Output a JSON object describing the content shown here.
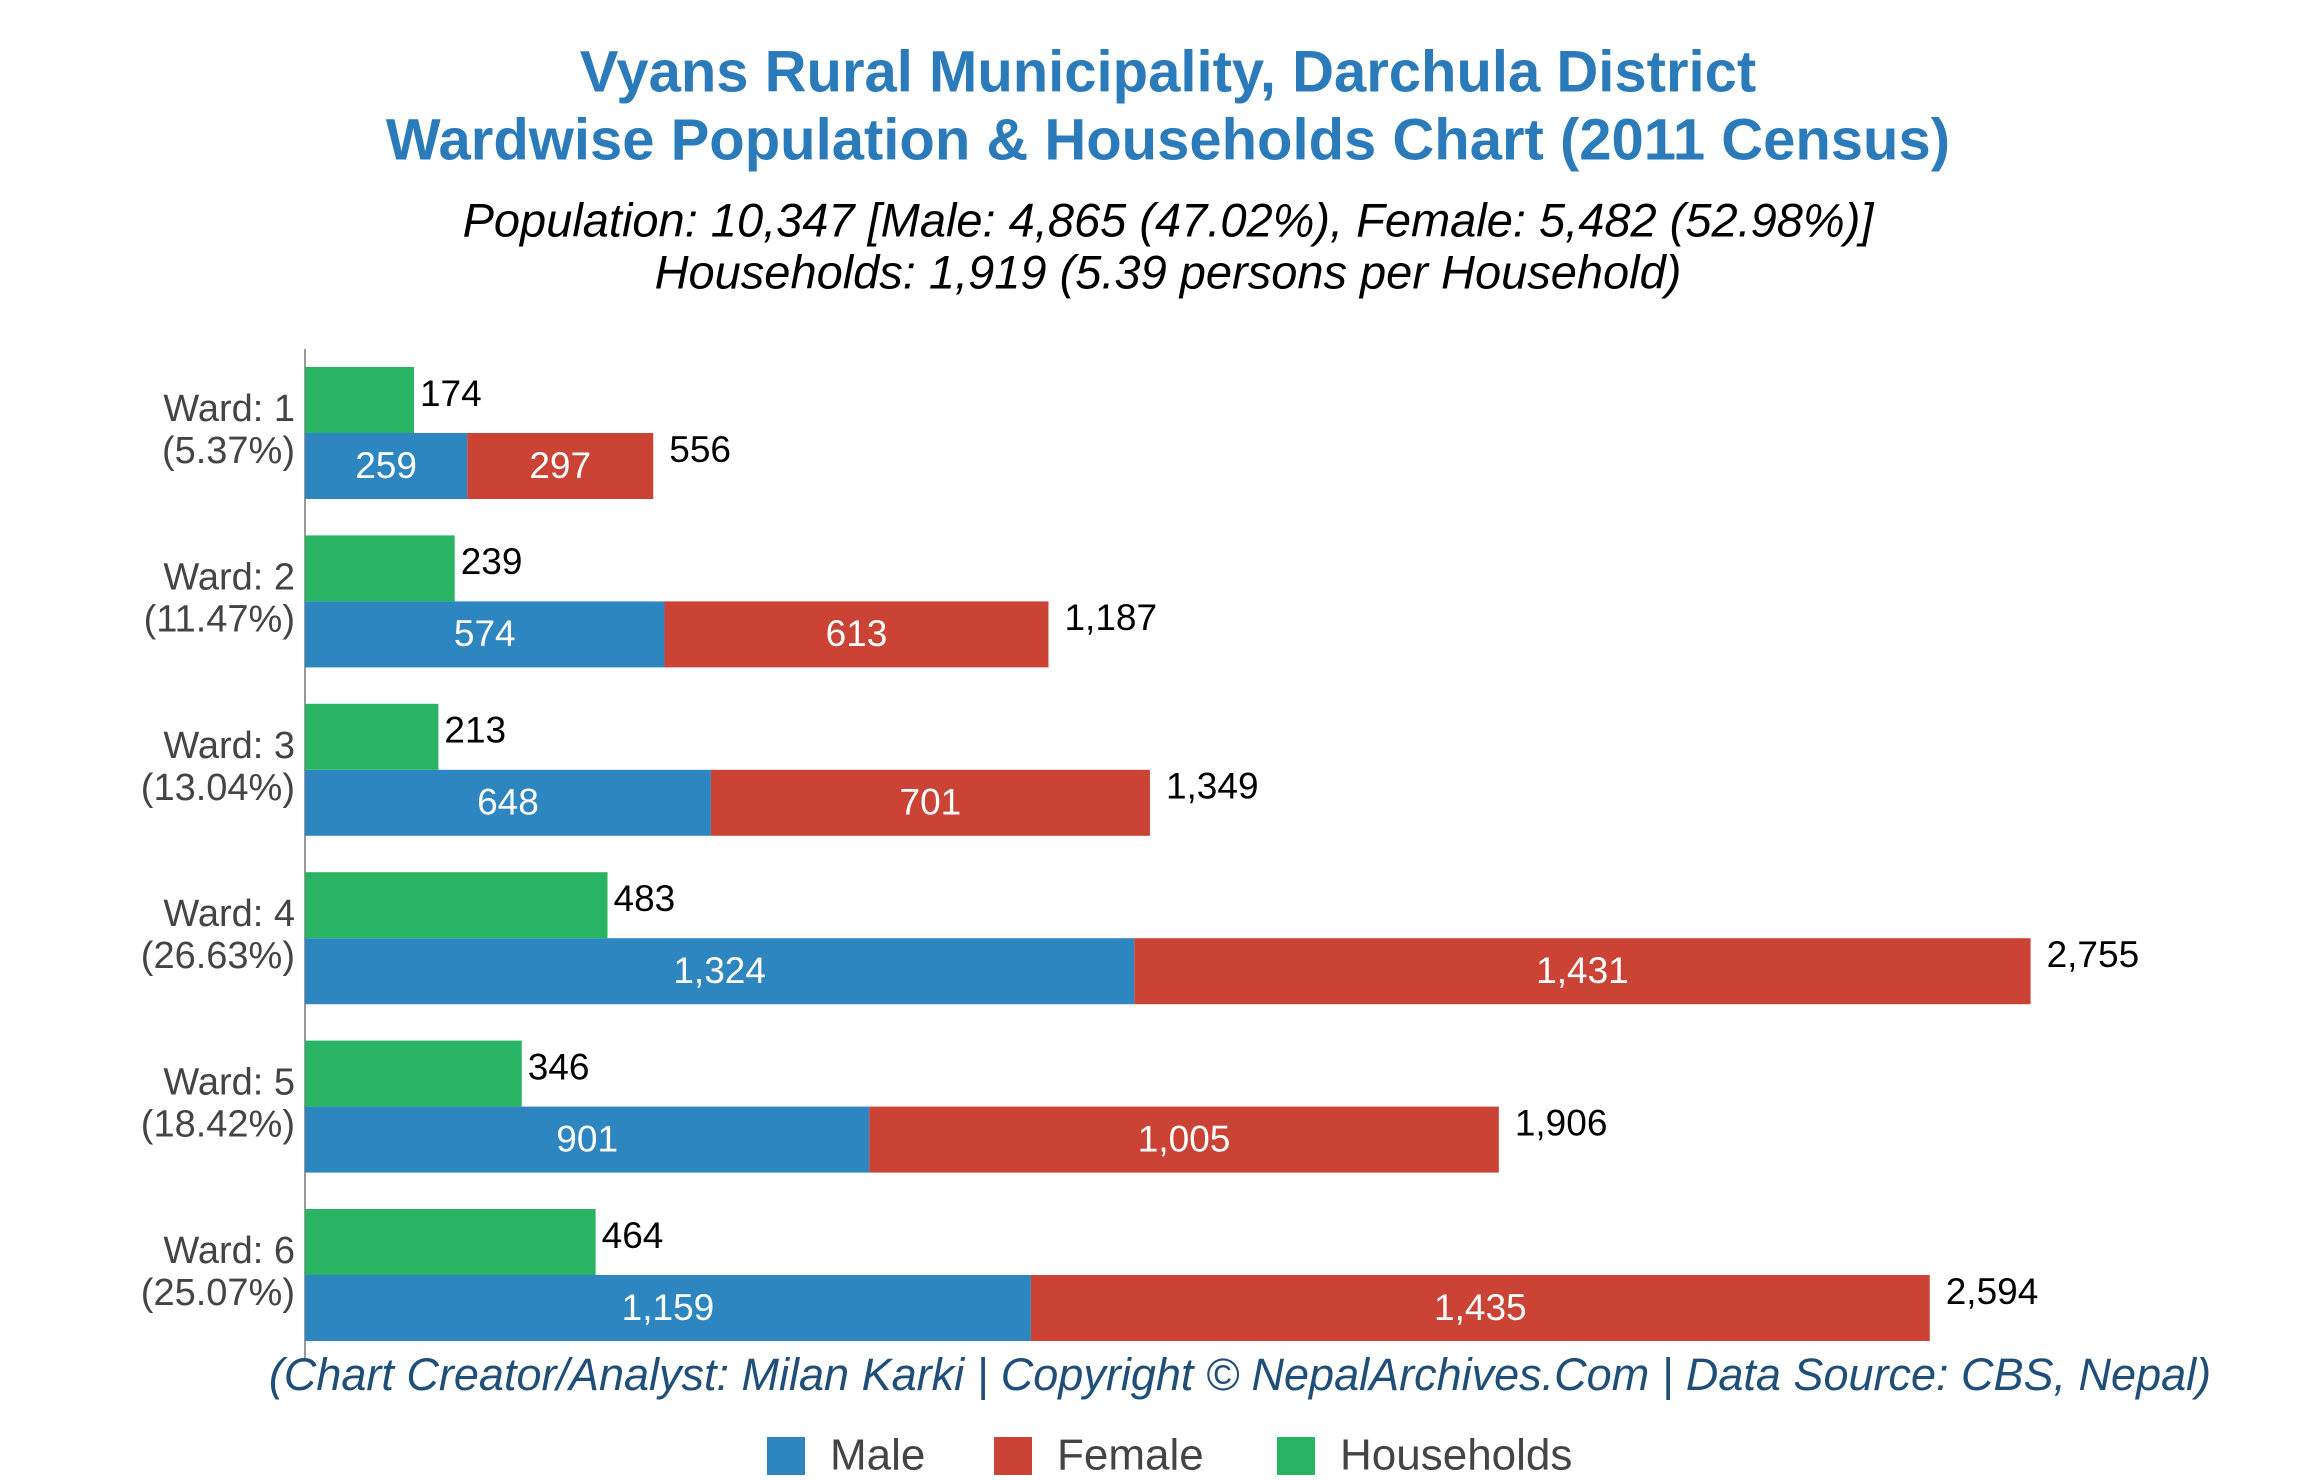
{
  "chart_data": {
    "type": "bar",
    "orientation": "horizontal",
    "title": [
      "Vyans Rural Municipality, Darchula District",
      "Wardwise Population & Households Chart (2011 Census)"
    ],
    "subtitle": [
      "Population: 10,347 [Male: 4,865 (47.02%), Female: 5,482 (52.98%)]",
      "Households: 1,919 (5.39 persons per Household)"
    ],
    "footer": "(Chart Creator/Analyst: Milan Karki | Copyright © NepalArchives.Com | Data Source: CBS, Nepal)",
    "categories": [
      "Ward: 1",
      "Ward: 2",
      "Ward: 3",
      "Ward: 4",
      "Ward: 5",
      "Ward: 6"
    ],
    "category_shares": [
      "(5.37%)",
      "(11.47%)",
      "(13.04%)",
      "(26.63%)",
      "(18.42%)",
      "(25.07%)"
    ],
    "series": [
      {
        "name": "Male",
        "color": "#2e86c1",
        "stack": "population",
        "values": [
          259,
          574,
          648,
          1324,
          901,
          1159
        ],
        "value_labels": [
          "259",
          "574",
          "648",
          "1,324",
          "901",
          "1,159"
        ]
      },
      {
        "name": "Female",
        "color": "#cb4335",
        "stack": "population",
        "values": [
          297,
          613,
          701,
          1431,
          1005,
          1435
        ],
        "value_labels": [
          "297",
          "613",
          "701",
          "1,431",
          "1,005",
          "1,435"
        ]
      },
      {
        "name": "Households",
        "color": "#28b463",
        "stack": "households",
        "values": [
          174,
          239,
          213,
          483,
          346,
          464
        ]
      }
    ],
    "totals": {
      "values": [
        556,
        1187,
        1349,
        2755,
        1906,
        2594
      ],
      "value_labels": [
        "556",
        "1,187",
        "1,349",
        "2,755",
        "1,906",
        "2,594"
      ]
    },
    "xlim": [
      0,
      3150
    ],
    "legend": "bottom"
  }
}
